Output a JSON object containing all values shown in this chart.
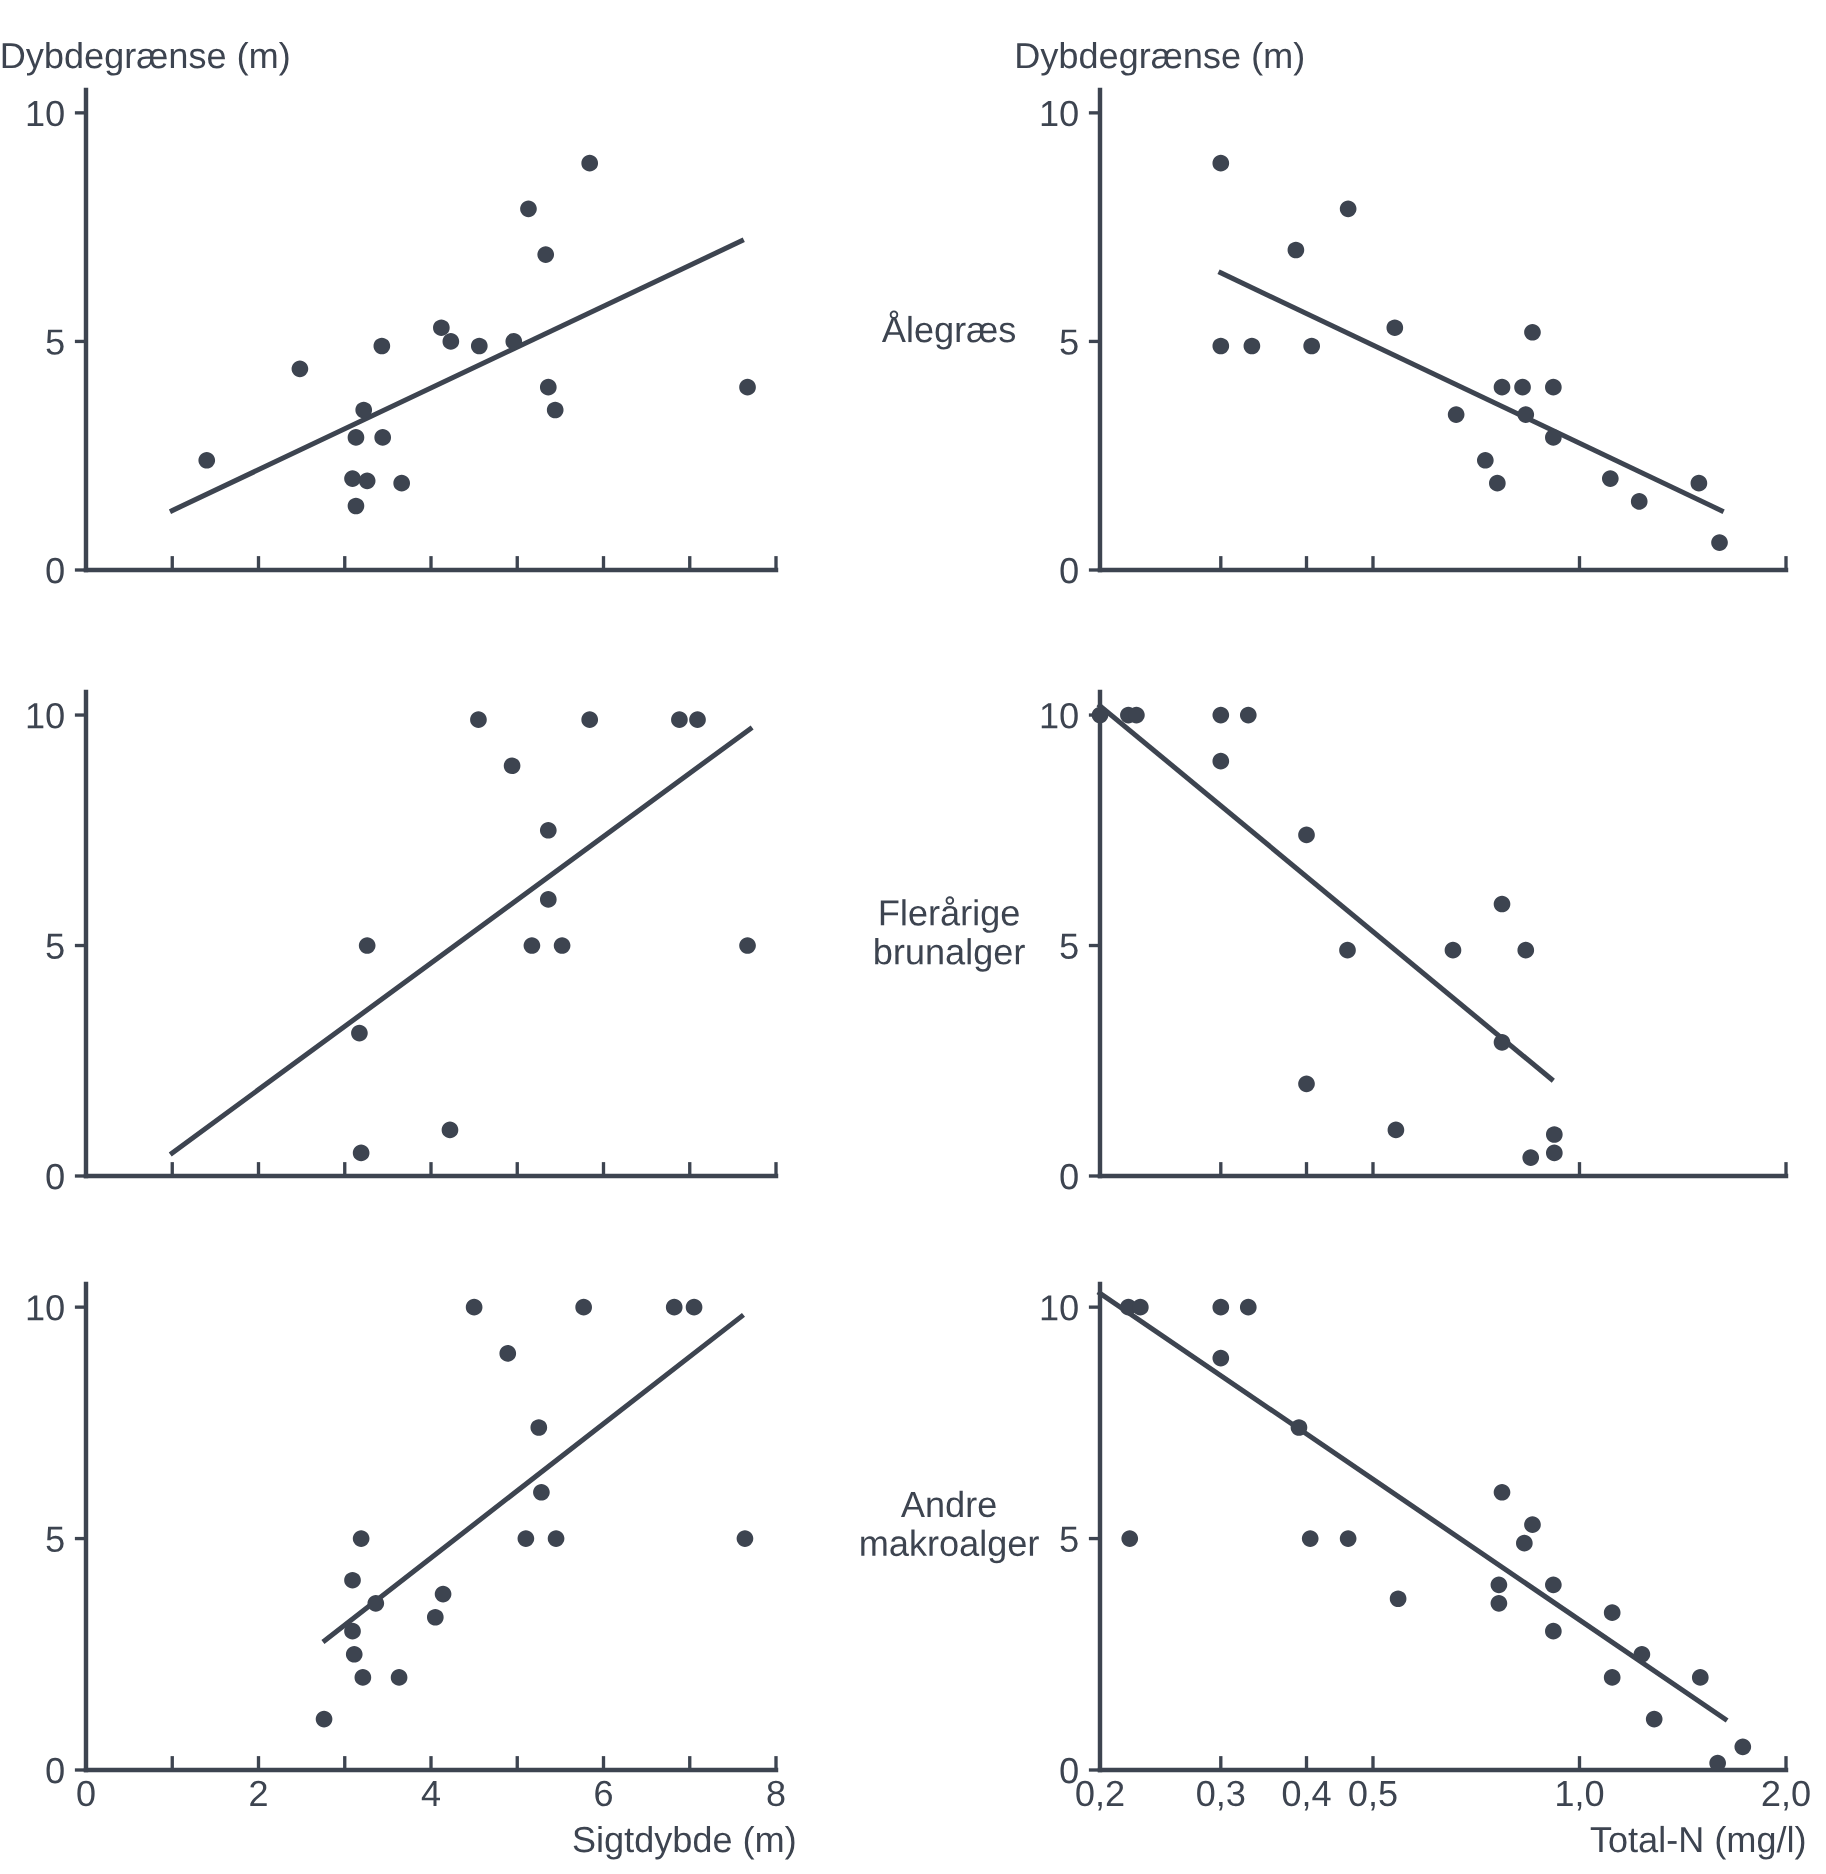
{
  "chart_data": [
    {
      "type": "scatter",
      "ylabel": "Dybdegrænse (m)",
      "xlim": [
        0,
        8
      ],
      "ylim": [
        0,
        10.5
      ],
      "xticks": [
        {
          "value": 1,
          "label": null
        },
        {
          "value": 2,
          "label": null
        },
        {
          "value": 3,
          "label": null
        },
        {
          "value": 4,
          "label": null
        },
        {
          "value": 5,
          "label": null
        },
        {
          "value": 6,
          "label": null
        },
        {
          "value": 7,
          "label": null
        },
        {
          "value": 8,
          "label": null
        }
      ],
      "yticks": [
        0,
        5,
        10
      ],
      "tick_labels": "y",
      "series": [
        {
          "marker": "circle",
          "color": "#3d4450",
          "x": [
            1.4,
            2.48,
            3.13,
            3.22,
            3.43,
            3.44,
            3.09,
            3.26,
            3.13,
            3.66,
            4.12,
            4.23,
            4.56,
            4.96,
            5.13,
            5.33,
            5.36,
            5.44,
            5.84,
            7.67
          ],
          "values": [
            2.4,
            4.4,
            2.9,
            3.5,
            4.9,
            2.9,
            2.0,
            1.95,
            1.4,
            1.9,
            5.3,
            5.0,
            4.9,
            5.0,
            7.9,
            6.9,
            4.0,
            3.5,
            8.9,
            4.0
          ]
        },
        {
          "type": "line",
          "marker": "none",
          "color": "#3d4450",
          "x": [
            1.0,
            7.6
          ],
          "values": [
            1.3,
            7.2
          ]
        }
      ]
    },
    {
      "type": "scatter",
      "ylabel": "Dybdegrænse (m)",
      "annotations": [
        "Ålegræs"
      ],
      "log": "x",
      "xlim": [
        0.2,
        2.0
      ],
      "ylim": [
        0,
        10.5
      ],
      "xticks": [
        {
          "value": 0.3,
          "label": null
        },
        {
          "value": 0.4,
          "label": null
        },
        {
          "value": 0.5,
          "label": null
        },
        {
          "value": 1.0,
          "label": null
        },
        {
          "value": 2.0,
          "label": null
        }
      ],
      "yticks": [
        0,
        5,
        10
      ],
      "tick_labels": "y",
      "series": [
        {
          "marker": "circle",
          "color": "#3d4450",
          "x": [
            0.3,
            0.3,
            0.333,
            0.386,
            0.407,
            0.46,
            0.538,
            0.661,
            0.729,
            0.759,
            0.771,
            0.826,
            0.835,
            0.854,
            0.916,
            0.916,
            1.109,
            1.222,
            1.493,
            1.6
          ],
          "values": [
            8.9,
            4.9,
            4.9,
            7.0,
            4.9,
            7.9,
            5.3,
            3.4,
            2.4,
            1.9,
            4.0,
            4.0,
            3.4,
            5.2,
            4.0,
            2.9,
            2.0,
            1.5,
            1.9,
            0.6
          ]
        },
        {
          "type": "line",
          "marker": "none",
          "color": "#3d4450",
          "x": [
            0.3,
            1.61
          ],
          "values": [
            6.5,
            1.3
          ]
        }
      ]
    },
    {
      "type": "scatter",
      "xlim": [
        0,
        8
      ],
      "ylim": [
        0,
        10.5
      ],
      "xticks": [
        {
          "value": 1,
          "label": null
        },
        {
          "value": 2,
          "label": null
        },
        {
          "value": 3,
          "label": null
        },
        {
          "value": 4,
          "label": null
        },
        {
          "value": 5,
          "label": null
        },
        {
          "value": 6,
          "label": null
        },
        {
          "value": 7,
          "label": null
        },
        {
          "value": 8,
          "label": null
        }
      ],
      "yticks": [
        0,
        5,
        10
      ],
      "tick_labels": "y",
      "series": [
        {
          "marker": "circle",
          "color": "#3d4450",
          "x": [
            3.26,
            3.17,
            3.19,
            4.22,
            4.55,
            4.94,
            5.84,
            6.88,
            7.09,
            5.36,
            5.36,
            5.17,
            5.52,
            7.67
          ],
          "values": [
            5.0,
            3.1,
            0.5,
            1.0,
            9.9,
            8.9,
            9.9,
            9.9,
            9.9,
            7.5,
            6.0,
            5.0,
            5.0,
            5.0
          ]
        },
        {
          "type": "line",
          "marker": "none",
          "color": "#3d4450",
          "x": [
            1.0,
            7.7
          ],
          "values": [
            0.5,
            9.7
          ]
        }
      ]
    },
    {
      "type": "scatter",
      "annotations": [
        "Flerårige\nbrunalger"
      ],
      "log": "x",
      "xlim": [
        0.2,
        2.0
      ],
      "ylim": [
        0,
        10.5
      ],
      "xticks": [
        {
          "value": 0.3,
          "label": null
        },
        {
          "value": 0.4,
          "label": null
        },
        {
          "value": 0.5,
          "label": null
        },
        {
          "value": 1.0,
          "label": null
        },
        {
          "value": 2.0,
          "label": null
        }
      ],
      "yticks": [
        0,
        5,
        10
      ],
      "tick_labels": "y",
      "series": [
        {
          "marker": "circle",
          "color": "#3d4450",
          "x": [
            0.2,
            0.22,
            0.226,
            0.3,
            0.329,
            0.3,
            0.4,
            0.4,
            0.459,
            0.54,
            0.654,
            0.771,
            0.771,
            0.835,
            0.849,
            0.919,
            0.919
          ],
          "values": [
            10.0,
            10.0,
            10.0,
            10.0,
            10.0,
            9.0,
            7.4,
            2.0,
            4.9,
            1.0,
            4.9,
            5.9,
            2.9,
            4.9,
            0.4,
            0.9,
            0.5
          ]
        },
        {
          "type": "line",
          "marker": "none",
          "color": "#3d4450",
          "x": [
            0.2,
            0.91
          ],
          "values": [
            10.2,
            2.1
          ]
        }
      ]
    },
    {
      "type": "scatter",
      "xlabel": "Sigtdybde (m)",
      "xlim": [
        0,
        8
      ],
      "ylim": [
        0,
        10.5
      ],
      "xticks": [
        0,
        {
          "value": 1,
          "label": null
        },
        2,
        {
          "value": 3,
          "label": null
        },
        4,
        {
          "value": 5,
          "label": null
        },
        6,
        {
          "value": 7,
          "label": null
        },
        8
      ],
      "yticks": [
        0,
        5,
        10
      ],
      "series": [
        {
          "marker": "circle",
          "color": "#3d4450",
          "x": [
            2.76,
            3.09,
            3.11,
            3.21,
            3.09,
            3.19,
            3.36,
            3.63,
            4.05,
            4.14,
            4.5,
            4.89,
            5.77,
            6.82,
            7.05,
            5.25,
            5.28,
            5.1,
            5.45,
            7.64
          ],
          "values": [
            1.1,
            3.0,
            2.5,
            2.0,
            4.1,
            5.0,
            3.6,
            2.0,
            3.3,
            3.8,
            10.0,
            9.0,
            10.0,
            10.0,
            10.0,
            7.4,
            6.0,
            5.0,
            5.0,
            5.0
          ]
        },
        {
          "type": "line",
          "marker": "none",
          "color": "#3d4450",
          "x": [
            2.77,
            7.6
          ],
          "values": [
            2.8,
            9.8
          ]
        }
      ]
    },
    {
      "type": "scatter",
      "xlabel": "Total-N (mg/l)",
      "annotations": [
        "Andre\nmakroalger"
      ],
      "log": "x",
      "xlim": [
        0.2,
        2.0
      ],
      "ylim": [
        0,
        10.5
      ],
      "xticks": [
        {
          "value": 0.2,
          "label": "0,2"
        },
        {
          "value": 0.3,
          "label": "0,3"
        },
        {
          "value": 0.4,
          "label": "0,4"
        },
        {
          "value": 0.5,
          "label": "0,5"
        },
        {
          "value": 1.0,
          "label": "1,0"
        },
        {
          "value": 2.0,
          "label": "2,0"
        }
      ],
      "yticks": [
        0,
        5,
        10
      ],
      "series": [
        {
          "marker": "circle",
          "color": "#3d4450",
          "x": [
            0.22,
            0.229,
            0.221,
            0.3,
            0.329,
            0.3,
            0.39,
            0.405,
            0.46,
            0.544,
            0.771,
            0.763,
            0.763,
            0.831,
            0.854,
            0.916,
            0.916,
            1.116,
            1.116,
            1.233,
            1.285,
            1.5,
            1.59,
            1.73
          ],
          "values": [
            10.0,
            10.0,
            5.0,
            10.0,
            10.0,
            8.9,
            7.4,
            5.0,
            5.0,
            3.7,
            6.0,
            4.0,
            3.6,
            4.9,
            5.3,
            4.0,
            3.0,
            3.4,
            2.0,
            2.5,
            1.1,
            2.0,
            0.15,
            0.5
          ]
        },
        {
          "type": "line",
          "marker": "none",
          "color": "#3d4450",
          "x": [
            0.2,
            1.63
          ],
          "values": [
            10.3,
            1.1
          ]
        }
      ]
    }
  ]
}
